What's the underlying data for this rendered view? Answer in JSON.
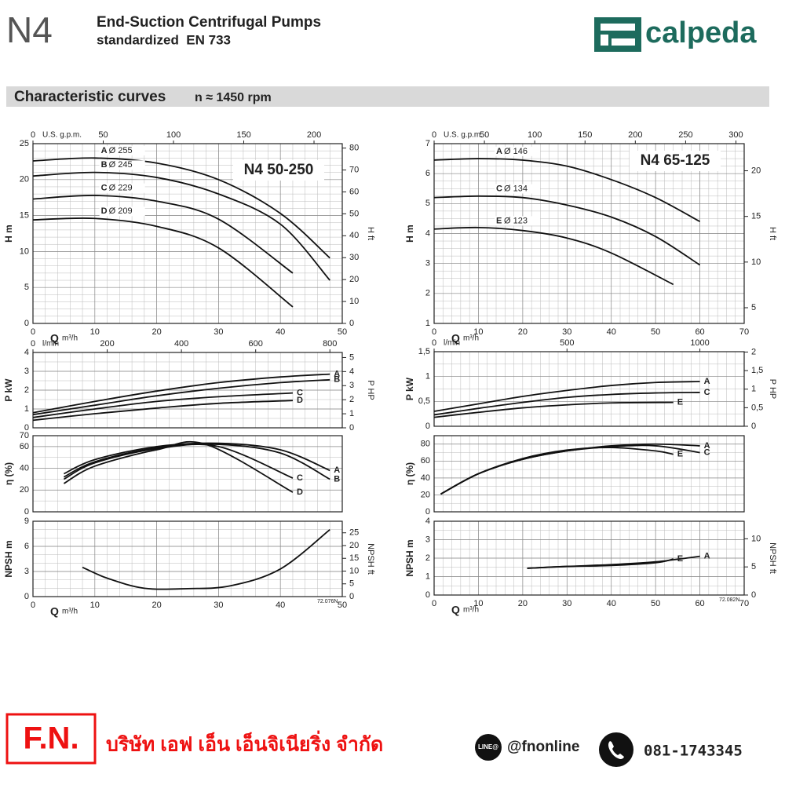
{
  "header": {
    "model": "N4",
    "title": "End-Suction Centrifugal Pumps",
    "subtitle": "standardized  EN 733",
    "brand": "calpeda"
  },
  "section": {
    "title": "Characteristic curves",
    "speed": "n ≈ 1450 rpm"
  },
  "chart_data": [
    {
      "type": "line",
      "title": "N4 50-250",
      "ylabel": "H m",
      "y2label": "H ft",
      "xlabel": "Q",
      "xunit": "m³/h",
      "x2label": "U.S. g.p.m.",
      "xlim": [
        0,
        50
      ],
      "xticks": [
        0,
        10,
        20,
        30,
        40,
        50
      ],
      "x2lim": [
        0,
        220.1
      ],
      "x2ticks": [
        0,
        50,
        100,
        150,
        200
      ],
      "ylim": [
        0,
        25
      ],
      "yticks": [
        0,
        5,
        10,
        15,
        20,
        25
      ],
      "y2lim": [
        0,
        82.02
      ],
      "y2ticks": [
        0,
        10,
        20,
        30,
        40,
        50,
        60,
        70,
        80
      ],
      "series": [
        {
          "name": "A",
          "diameter": "Ø 255",
          "color": "#111111",
          "x": [
            0,
            10,
            20,
            30,
            40,
            48
          ],
          "values": [
            22.6,
            23,
            22.3,
            20,
            15.3,
            9.1
          ]
        },
        {
          "name": "B",
          "diameter": "Ø 245",
          "color": "#111111",
          "x": [
            0,
            10,
            20,
            30,
            40,
            48
          ],
          "values": [
            20.5,
            21,
            20.3,
            18,
            13.8,
            6
          ]
        },
        {
          "name": "C",
          "diameter": "Ø 229",
          "color": "#111111",
          "x": [
            0,
            10,
            20,
            30,
            42
          ],
          "values": [
            17.3,
            17.8,
            17,
            14.5,
            7
          ]
        },
        {
          "name": "D",
          "diameter": "Ø 209",
          "color": "#111111",
          "x": [
            0,
            10,
            20,
            30,
            42
          ],
          "values": [
            14.4,
            14.6,
            13.5,
            10.5,
            2.3
          ]
        }
      ]
    },
    {
      "type": "line",
      "ylabel": "P kW",
      "y2label": "P HP",
      "x2label": "l/min",
      "xlim": [
        0,
        50
      ],
      "x2lim": [
        0,
        833.3
      ],
      "x2ticks": [
        0,
        200,
        400,
        600,
        800
      ],
      "ylim": [
        0,
        4
      ],
      "yticks": [
        0,
        1,
        2,
        3,
        4
      ],
      "y2lim": [
        0,
        5.36
      ],
      "y2ticks": [
        0,
        1,
        2,
        3,
        4,
        5
      ],
      "series": [
        {
          "name": "A",
          "color": "#111111",
          "x": [
            0,
            10,
            20,
            30,
            40,
            48
          ],
          "values": [
            0.8,
            1.4,
            1.95,
            2.4,
            2.7,
            2.85
          ]
        },
        {
          "name": "B",
          "color": "#111111",
          "x": [
            0,
            10,
            20,
            30,
            40,
            48
          ],
          "values": [
            0.7,
            1.2,
            1.7,
            2.1,
            2.4,
            2.55
          ]
        },
        {
          "name": "C",
          "color": "#111111",
          "x": [
            0,
            10,
            20,
            30,
            42
          ],
          "values": [
            0.55,
            1,
            1.4,
            1.65,
            1.85
          ]
        },
        {
          "name": "D",
          "color": "#111111",
          "x": [
            0,
            10,
            20,
            30,
            42
          ],
          "values": [
            0.4,
            0.75,
            1.05,
            1.3,
            1.45
          ]
        }
      ]
    },
    {
      "type": "line",
      "ylabel": "η (%)",
      "xlim": [
        0,
        50
      ],
      "ylim": [
        0,
        70
      ],
      "yticks": [
        0,
        20,
        40,
        60,
        70
      ],
      "series": [
        {
          "name": "A",
          "color": "#111111",
          "x": [
            5,
            10,
            20,
            30,
            40,
            48
          ],
          "values": [
            35,
            48,
            60,
            63,
            57,
            38
          ]
        },
        {
          "name": "B",
          "color": "#111111",
          "x": [
            5,
            10,
            20,
            30,
            40,
            48
          ],
          "values": [
            32,
            46,
            59,
            62,
            54,
            30
          ]
        },
        {
          "name": "C",
          "color": "#111111",
          "x": [
            5,
            10,
            20,
            30,
            42
          ],
          "values": [
            30,
            45,
            58,
            60,
            31
          ]
        },
        {
          "name": "D",
          "color": "#111111",
          "x": [
            5,
            10,
            20,
            28,
            42
          ],
          "values": [
            26,
            42,
            57,
            62,
            18
          ]
        }
      ]
    },
    {
      "type": "line",
      "ylabel": "NPSH m",
      "y2label": "NPSH ft",
      "xlabel": "Q",
      "xunit": "m³/h",
      "xlim": [
        0,
        50
      ],
      "xticks": [
        0,
        10,
        20,
        30,
        40,
        50
      ],
      "ylim": [
        0,
        9
      ],
      "yticks": [
        0,
        3,
        6,
        9
      ],
      "y2lim": [
        0,
        29.53
      ],
      "y2ticks": [
        0,
        5,
        10,
        15,
        20,
        25
      ],
      "note": "72.076N",
      "series": [
        {
          "name": "NPSH",
          "color": "#111111",
          "x": [
            8,
            12,
            18,
            25,
            32,
            40,
            48
          ],
          "values": [
            3.5,
            2.2,
            1,
            0.95,
            1.3,
            3.3,
            8
          ]
        }
      ]
    },
    {
      "type": "line",
      "title": "N4 65-125",
      "ylabel": "H m",
      "y2label": "H ft",
      "xlabel": "Q",
      "xunit": "m³/h",
      "x2label": "U.S. g.p.m.",
      "xlim": [
        0,
        70
      ],
      "xticks": [
        0,
        10,
        20,
        30,
        40,
        50,
        60,
        70
      ],
      "x2lim": [
        0,
        308.2
      ],
      "x2ticks": [
        0,
        50,
        100,
        150,
        200,
        250,
        300
      ],
      "ylim": [
        1,
        7
      ],
      "yticks": [
        1,
        2,
        3,
        4,
        5,
        6,
        7
      ],
      "y2lim": [
        3.28,
        22.97
      ],
      "y2ticks": [
        5,
        10,
        15,
        20
      ],
      "series": [
        {
          "name": "A",
          "diameter": "Ø 146",
          "color": "#111111",
          "x": [
            0,
            10,
            20,
            30,
            40,
            50,
            60
          ],
          "values": [
            6.45,
            6.5,
            6.45,
            6.25,
            5.8,
            5.2,
            4.4
          ]
        },
        {
          "name": "C",
          "diameter": "Ø 134",
          "color": "#111111",
          "x": [
            0,
            10,
            20,
            30,
            40,
            50,
            60
          ],
          "values": [
            5.2,
            5.25,
            5.2,
            4.95,
            4.55,
            3.9,
            2.95
          ]
        },
        {
          "name": "E",
          "diameter": "Ø 123",
          "color": "#111111",
          "x": [
            0,
            10,
            20,
            30,
            40,
            54
          ],
          "values": [
            4.15,
            4.2,
            4.1,
            3.85,
            3.35,
            2.3
          ]
        }
      ]
    },
    {
      "type": "line",
      "ylabel": "P kW",
      "y2label": "P HP",
      "x2label": "l/min",
      "xlim": [
        0,
        70
      ],
      "x2lim": [
        0,
        1166.7
      ],
      "x2ticks": [
        0,
        500,
        1000
      ],
      "ylim": [
        0,
        1.5
      ],
      "yticks": [
        0,
        {
          "value": 0.5,
          "label": "0,5"
        },
        1,
        {
          "value": 1.5,
          "label": "1,5"
        }
      ],
      "y2lim": [
        0,
        2.01
      ],
      "y2ticks": [
        0,
        {
          "value": 0.5,
          "label": "0,5"
        },
        1,
        {
          "value": 1.5,
          "label": "1,5"
        },
        2
      ],
      "series": [
        {
          "name": "A",
          "color": "#111111",
          "x": [
            0,
            10,
            20,
            30,
            40,
            50,
            60
          ],
          "values": [
            0.3,
            0.45,
            0.6,
            0.72,
            0.82,
            0.88,
            0.9
          ]
        },
        {
          "name": "C",
          "color": "#111111",
          "x": [
            0,
            10,
            20,
            30,
            40,
            50,
            60
          ],
          "values": [
            0.23,
            0.36,
            0.48,
            0.58,
            0.64,
            0.67,
            0.68
          ]
        },
        {
          "name": "E",
          "color": "#111111",
          "x": [
            0,
            10,
            20,
            30,
            40,
            54
          ],
          "values": [
            0.18,
            0.28,
            0.37,
            0.43,
            0.47,
            0.48
          ]
        }
      ]
    },
    {
      "type": "line",
      "ylabel": "η (%)",
      "xlim": [
        0,
        70
      ],
      "ylim": [
        0,
        90
      ],
      "yticks": [
        0,
        20,
        40,
        60,
        80
      ],
      "series": [
        {
          "name": "A",
          "color": "#111111",
          "x": [
            1.5,
            10,
            20,
            30,
            40,
            50,
            60
          ],
          "values": [
            21,
            45,
            62,
            72,
            78,
            80,
            78
          ]
        },
        {
          "name": "C",
          "color": "#111111",
          "x": [
            1.5,
            10,
            20,
            30,
            40,
            50,
            60
          ],
          "values": [
            21,
            45,
            62,
            72,
            77,
            78,
            70
          ]
        },
        {
          "name": "E",
          "color": "#111111",
          "x": [
            1.5,
            10,
            20,
            30,
            40,
            50,
            54
          ],
          "values": [
            21,
            45,
            63,
            73,
            76,
            72,
            68
          ]
        }
      ]
    },
    {
      "type": "line",
      "ylabel": "NPSH m",
      "y2label": "NPSH ft",
      "xlabel": "Q",
      "xunit": "m³/h",
      "xlim": [
        0,
        70
      ],
      "xticks": [
        0,
        10,
        20,
        30,
        40,
        50,
        60,
        70
      ],
      "ylim": [
        0,
        4
      ],
      "yticks": [
        0,
        1,
        2,
        3,
        4
      ],
      "y2lim": [
        0,
        13.12
      ],
      "y2ticks": [
        0,
        5,
        10
      ],
      "note": "72.082N",
      "series": [
        {
          "name": "A",
          "color": "#111111",
          "x": [
            21,
            30,
            40,
            50,
            60
          ],
          "values": [
            1.45,
            1.55,
            1.65,
            1.8,
            2.1
          ]
        },
        {
          "name": "E",
          "color": "#111111",
          "x": [
            21,
            30,
            40,
            50,
            54
          ],
          "values": [
            1.45,
            1.55,
            1.6,
            1.75,
            1.95
          ]
        }
      ]
    }
  ],
  "footer": {
    "logo": "F.N.",
    "company": "บริษัท เอฟ เอ็น เอ็นจิเนียริ่ง จำกัด",
    "line_badge": "LINE@",
    "line_id": "@fnonline",
    "phone": "081-1743345"
  }
}
